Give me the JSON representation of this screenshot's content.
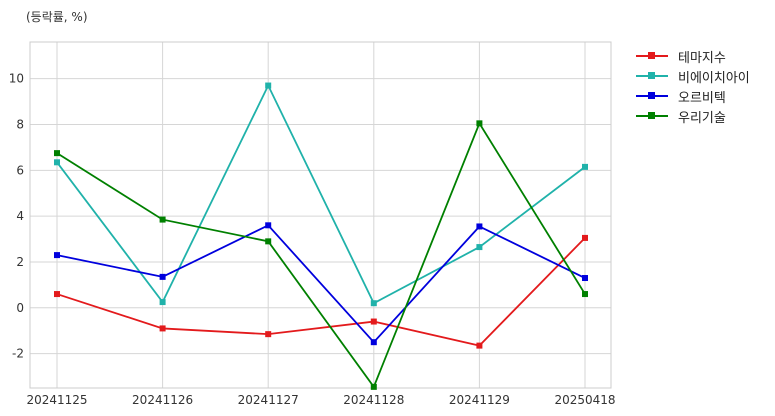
{
  "chart_data": {
    "type": "line",
    "unit_label": "(등락률, %)",
    "categories": [
      "20241125",
      "20241126",
      "20241127",
      "20241128",
      "20241129",
      "20250418"
    ],
    "ylim": [
      -3.5,
      11.6
    ],
    "yticks": [
      -2,
      0,
      2,
      4,
      6,
      8,
      10
    ],
    "grid": true,
    "legend_position": "right-top",
    "series": [
      {
        "name": "테마지수",
        "color": "#e31a1c",
        "values": [
          0.6,
          -0.9,
          -1.15,
          -0.6,
          -1.65,
          3.05
        ]
      },
      {
        "name": "비에이치아이",
        "color": "#20b2aa",
        "values": [
          6.35,
          0.25,
          9.7,
          0.2,
          2.65,
          6.15
        ]
      },
      {
        "name": "오르비텍",
        "color": "#0000dd",
        "values": [
          2.3,
          1.35,
          3.6,
          -1.5,
          3.55,
          1.3
        ]
      },
      {
        "name": "우리기술",
        "color": "#008000",
        "values": [
          6.75,
          3.85,
          2.9,
          -3.45,
          8.05,
          0.6
        ]
      }
    ]
  }
}
